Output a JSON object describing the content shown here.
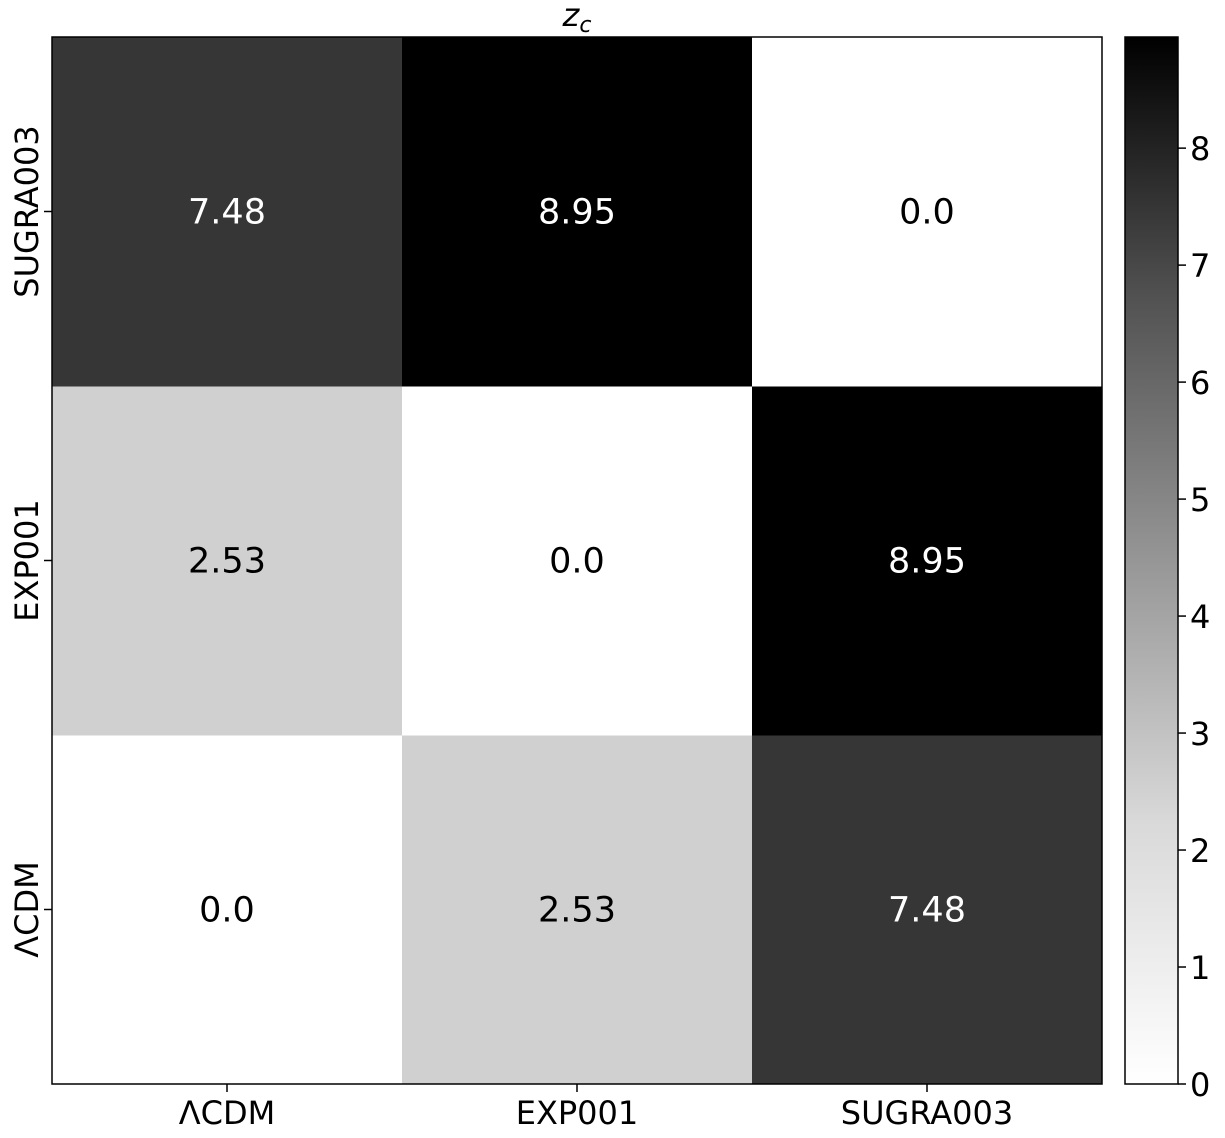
{
  "chart_data": {
    "type": "heatmap",
    "title_main": "z",
    "title_sub": "c",
    "x_categories": [
      "ΛCDM",
      "EXP001",
      "SUGRA003"
    ],
    "y_categories": [
      "ΛCDM",
      "EXP001",
      "SUGRA003"
    ],
    "values": [
      [
        0.0,
        2.53,
        7.48
      ],
      [
        2.53,
        0.0,
        8.95
      ],
      [
        7.48,
        8.95,
        0.0
      ]
    ],
    "cell_labels": [
      [
        "0.0",
        "2.53",
        "7.48"
      ],
      [
        "2.53",
        "0.0",
        "8.95"
      ],
      [
        "7.48",
        "8.95",
        "0.0"
      ]
    ],
    "colormap": "Greys",
    "color_low": "#ffffff",
    "color_high": "#000000",
    "colorbar": {
      "range": [
        0,
        8.95
      ],
      "ticks": [
        0,
        1,
        2,
        3,
        4,
        5,
        6,
        7,
        8
      ],
      "tick_labels": [
        "0",
        "1",
        "2",
        "3",
        "4",
        "5",
        "6",
        "7",
        "8"
      ]
    }
  }
}
